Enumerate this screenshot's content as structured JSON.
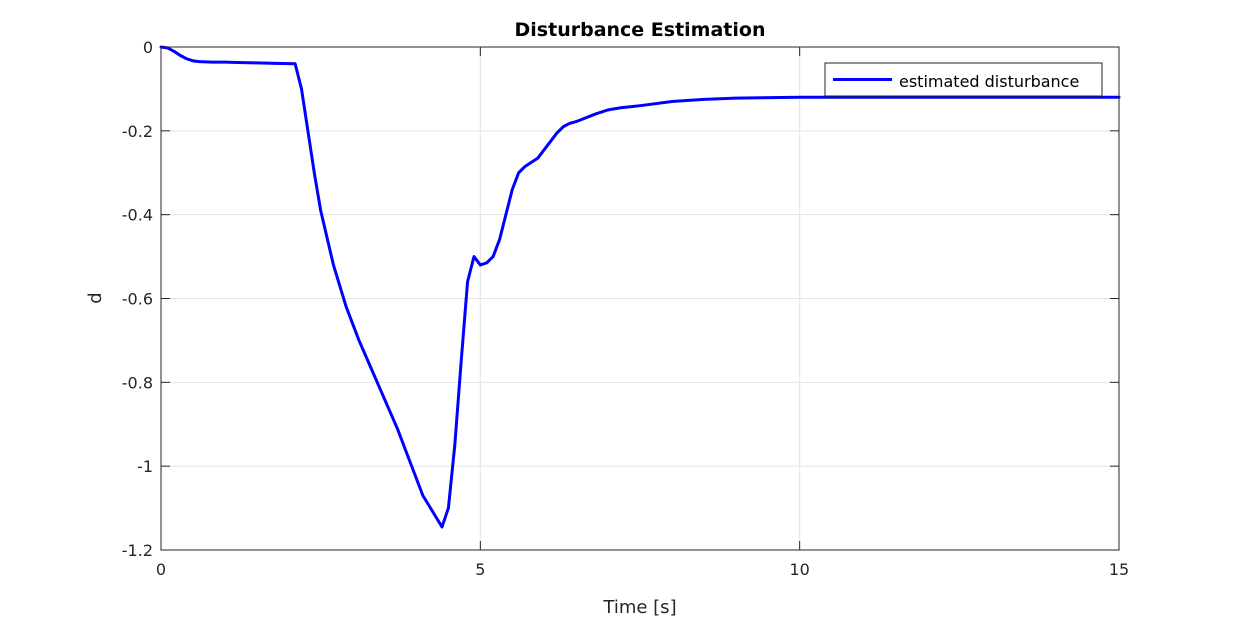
{
  "chart_data": {
    "type": "line",
    "title": "Disturbance Estimation",
    "xlabel": "Time [s]",
    "ylabel": "d",
    "xlim": [
      0,
      15
    ],
    "ylim": [
      -1.2,
      0
    ],
    "xticks": [
      0,
      5,
      10,
      15
    ],
    "yticks": [
      0,
      -0.2,
      -0.4,
      -0.6,
      -0.8,
      -1,
      -1.2
    ],
    "xtick_labels": [
      "0",
      "5",
      "10",
      "15"
    ],
    "ytick_labels": [
      "0",
      "-0.2",
      "-0.4",
      "-0.6",
      "-0.8",
      "-1",
      "-1.2"
    ],
    "grid": true,
    "legend_position": "top-right",
    "series": [
      {
        "name": "estimated disturbance",
        "color": "#0000ff",
        "x": [
          0,
          0.1,
          0.2,
          0.3,
          0.4,
          0.5,
          0.6,
          0.8,
          1.0,
          1.2,
          1.5,
          1.8,
          2.1,
          2.2,
          2.3,
          2.4,
          2.5,
          2.7,
          2.9,
          3.1,
          3.3,
          3.5,
          3.7,
          3.9,
          4.1,
          4.3,
          4.4,
          4.5,
          4.6,
          4.7,
          4.8,
          4.9,
          5.0,
          5.1,
          5.2,
          5.3,
          5.4,
          5.5,
          5.6,
          5.7,
          5.8,
          5.9,
          6.0,
          6.1,
          6.2,
          6.3,
          6.4,
          6.5,
          6.6,
          6.8,
          7.0,
          7.2,
          7.5,
          8.0,
          8.5,
          9.0,
          10.0,
          11.0,
          12.0,
          13.0,
          14.0,
          15.0
        ],
        "y": [
          0,
          -0.002,
          -0.01,
          -0.02,
          -0.028,
          -0.033,
          -0.035,
          -0.036,
          -0.036,
          -0.037,
          -0.038,
          -0.039,
          -0.04,
          -0.1,
          -0.2,
          -0.3,
          -0.39,
          -0.52,
          -0.62,
          -0.7,
          -0.77,
          -0.84,
          -0.91,
          -0.99,
          -1.07,
          -1.12,
          -1.145,
          -1.1,
          -0.95,
          -0.75,
          -0.56,
          -0.5,
          -0.52,
          -0.515,
          -0.5,
          -0.46,
          -0.4,
          -0.34,
          -0.3,
          -0.285,
          -0.275,
          -0.265,
          -0.245,
          -0.225,
          -0.205,
          -0.19,
          -0.182,
          -0.178,
          -0.172,
          -0.16,
          -0.15,
          -0.145,
          -0.14,
          -0.13,
          -0.125,
          -0.122,
          -0.12,
          -0.12,
          -0.12,
          -0.12,
          -0.12,
          -0.12
        ]
      }
    ]
  }
}
